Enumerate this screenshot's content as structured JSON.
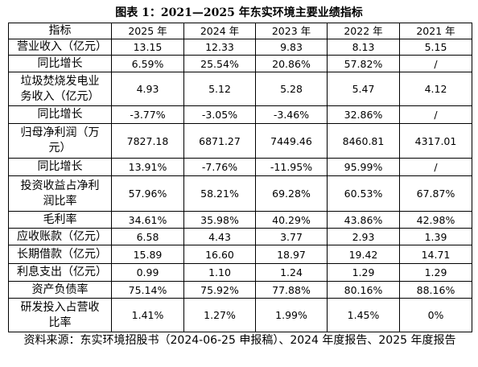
{
  "title": "图表 1：2021—2025 年东实环境主要业绩指标",
  "table": {
    "header": [
      "指标",
      "2025 年",
      "2024 年",
      "2023 年",
      "2022 年",
      "2021 年"
    ],
    "rows": [
      [
        "营业收入（亿元）",
        "13.15",
        "12.33",
        "9.83",
        "8.13",
        "5.15"
      ],
      [
        "同比增长",
        "6.59%",
        "25.54%",
        "20.86%",
        "57.82%",
        "/"
      ],
      [
        "垃圾焚烧发电业务收入（亿元）",
        "4.93",
        "5.12",
        "5.28",
        "5.47",
        "4.12"
      ],
      [
        "同比增长",
        "-3.77%",
        "-3.05%",
        "-3.46%",
        "32.86%",
        "/"
      ],
      [
        "归母净利润（万元）",
        "7827.18",
        "6871.27",
        "7449.46",
        "8460.81",
        "4317.01"
      ],
      [
        "同比增长",
        "13.91%",
        "-7.76%",
        "-11.95%",
        "95.99%",
        "/"
      ],
      [
        "投资收益占净利润比率",
        "57.96%",
        "58.21%",
        "69.28%",
        "60.53%",
        "67.87%"
      ],
      [
        "毛利率",
        "34.61%",
        "35.98%",
        "40.29%",
        "43.86%",
        "42.98%"
      ],
      [
        "应收账款（亿元）",
        "6.58",
        "4.43",
        "3.77",
        "2.93",
        "1.39"
      ],
      [
        "长期借款（亿元）",
        "15.89",
        "16.60",
        "18.97",
        "19.42",
        "14.71"
      ],
      [
        "利息支出（亿元）",
        "0.99",
        "1.10",
        "1.24",
        "1.29",
        "1.29"
      ],
      [
        "资产负债率",
        "75.14%",
        "75.92%",
        "77.88%",
        "80.16%",
        "88.16%"
      ],
      [
        "研发投入占营收比率",
        "1.41%",
        "1.27%",
        "1.99%",
        "1.45%",
        "0%"
      ]
    ]
  },
  "source": "资料来源：东实环境招股书（2024-06-25 申报稿）、2024 年度报告、2025 年度报告"
}
